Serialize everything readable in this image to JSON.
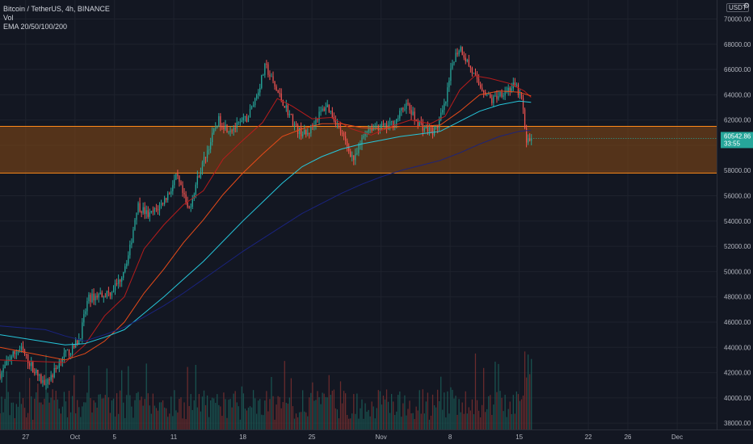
{
  "legend": {
    "symbol": "Bitcoin / TetherUS, 4h, BINANCE",
    "volume": "Vol",
    "ema": "EMA 20/50/100/200"
  },
  "currency": "USDT",
  "settings_icon": "scale-options-icon",
  "price_labels": {
    "last_price": "60542.86",
    "countdown": "33:55"
  },
  "colors": {
    "background": "#131722",
    "up": "#26a69a",
    "down": "#ef5350",
    "ema20": "#b71c1c",
    "ema50": "#e64a19",
    "ema100": "#26c6da",
    "ema200": "#1a237e",
    "zone_fill": "#8b4a14",
    "zone_border": "#ff8a1a",
    "price_label": "#26a69a"
  },
  "chart_data": {
    "type": "candlestick",
    "title": "Bitcoin / TetherUS, 4h, BINANCE",
    "xlabel": "",
    "ylabel": "",
    "y_ticks": [
      "38000.00",
      "40000.00",
      "42000.00",
      "44000.00",
      "46000.00",
      "48000.00",
      "50000.00",
      "52000.00",
      "54000.00",
      "56000.00",
      "58000.00",
      "60000.00",
      "62000.00",
      "64000.00",
      "66000.00",
      "68000.00",
      "70000.00"
    ],
    "ylim": [
      37500,
      71500
    ],
    "x_ticks": [
      {
        "label": "27",
        "day": -4
      },
      {
        "label": "Oct",
        "day": 1
      },
      {
        "label": "5",
        "day": 5
      },
      {
        "label": "11",
        "day": 11
      },
      {
        "label": "18",
        "day": 18
      },
      {
        "label": "25",
        "day": 25
      },
      {
        "label": "Nov",
        "day": 32
      },
      {
        "label": "8",
        "day": 39
      },
      {
        "label": "15",
        "day": 46
      },
      {
        "label": "22",
        "day": 53
      },
      {
        "label": "26",
        "day": 57
      },
      {
        "label": "Dec",
        "day": 62
      }
    ],
    "xlim_days": [
      -6.6,
      66
    ],
    "last_candle_day": 47.2,
    "support_zone": [
      57800,
      61500
    ],
    "key_points": [
      {
        "day": -6.5,
        "price": 41900
      },
      {
        "day": -5.5,
        "price": 43300
      },
      {
        "day": -4.5,
        "price": 43900
      },
      {
        "day": -3.3,
        "price": 42400
      },
      {
        "day": -2.3,
        "price": 41200
      },
      {
        "day": -1.3,
        "price": 41800
      },
      {
        "day": -0.3,
        "price": 43300
      },
      {
        "day": 0.7,
        "price": 43800
      },
      {
        "day": 1.5,
        "price": 44800
      },
      {
        "day": 2.3,
        "price": 47800
      },
      {
        "day": 3.5,
        "price": 48200
      },
      {
        "day": 4.5,
        "price": 48300
      },
      {
        "day": 5.5,
        "price": 49300
      },
      {
        "day": 6.5,
        "price": 51500
      },
      {
        "day": 7.3,
        "price": 55300
      },
      {
        "day": 8.5,
        "price": 54400
      },
      {
        "day": 9.5,
        "price": 55100
      },
      {
        "day": 10.5,
        "price": 56200
      },
      {
        "day": 11.3,
        "price": 57500
      },
      {
        "day": 12.5,
        "price": 54800
      },
      {
        "day": 13.5,
        "price": 57600
      },
      {
        "day": 14.5,
        "price": 59800
      },
      {
        "day": 15.5,
        "price": 62000
      },
      {
        "day": 16.5,
        "price": 61300
      },
      {
        "day": 17.5,
        "price": 61500
      },
      {
        "day": 18.5,
        "price": 62200
      },
      {
        "day": 19.5,
        "price": 64200
      },
      {
        "day": 20.3,
        "price": 66300
      },
      {
        "day": 21.3,
        "price": 64500
      },
      {
        "day": 22.5,
        "price": 62800
      },
      {
        "day": 23.5,
        "price": 61200
      },
      {
        "day": 24.5,
        "price": 60800
      },
      {
        "day": 25.5,
        "price": 62200
      },
      {
        "day": 26.5,
        "price": 63200
      },
      {
        "day": 27.5,
        "price": 61800
      },
      {
        "day": 28.5,
        "price": 60000
      },
      {
        "day": 29.3,
        "price": 58800
      },
      {
        "day": 30.5,
        "price": 61300
      },
      {
        "day": 31.5,
        "price": 61500
      },
      {
        "day": 32.5,
        "price": 61400
      },
      {
        "day": 33.5,
        "price": 61900
      },
      {
        "day": 34.5,
        "price": 63300
      },
      {
        "day": 35.5,
        "price": 62000
      },
      {
        "day": 36.5,
        "price": 61300
      },
      {
        "day": 37.5,
        "price": 61100
      },
      {
        "day": 38.5,
        "price": 63200
      },
      {
        "day": 39.3,
        "price": 66800
      },
      {
        "day": 40.0,
        "price": 67800
      },
      {
        "day": 41.0,
        "price": 66200
      },
      {
        "day": 41.8,
        "price": 64900
      },
      {
        "day": 42.5,
        "price": 64300
      },
      {
        "day": 43.2,
        "price": 63500
      },
      {
        "day": 44.0,
        "price": 64100
      },
      {
        "day": 45.0,
        "price": 64500
      },
      {
        "day": 45.6,
        "price": 64700
      },
      {
        "day": 46.3,
        "price": 63500
      },
      {
        "day": 46.7,
        "price": 60200
      },
      {
        "day": 47.2,
        "price": 60540
      }
    ],
    "series": [
      {
        "name": "EMA 20",
        "type": "line",
        "values": [
          {
            "day": -6.6,
            "price": 43000
          },
          {
            "day": 0,
            "price": 42800
          },
          {
            "day": 2,
            "price": 44200
          },
          {
            "day": 4,
            "price": 46500
          },
          {
            "day": 6,
            "price": 48000
          },
          {
            "day": 8,
            "price": 51800
          },
          {
            "day": 10,
            "price": 53700
          },
          {
            "day": 12,
            "price": 55300
          },
          {
            "day": 14,
            "price": 56400
          },
          {
            "day": 16,
            "price": 58900
          },
          {
            "day": 18,
            "price": 60400
          },
          {
            "day": 20,
            "price": 61800
          },
          {
            "day": 21.5,
            "price": 63700
          },
          {
            "day": 23,
            "price": 63100
          },
          {
            "day": 25,
            "price": 62100
          },
          {
            "day": 27,
            "price": 62200
          },
          {
            "day": 29,
            "price": 61300
          },
          {
            "day": 31,
            "price": 60800
          },
          {
            "day": 33,
            "price": 61500
          },
          {
            "day": 35,
            "price": 62000
          },
          {
            "day": 37,
            "price": 61700
          },
          {
            "day": 38.5,
            "price": 62300
          },
          {
            "day": 40,
            "price": 64400
          },
          {
            "day": 41.5,
            "price": 65500
          },
          {
            "day": 43,
            "price": 65300
          },
          {
            "day": 45,
            "price": 64900
          },
          {
            "day": 46.5,
            "price": 64300
          },
          {
            "day": 47.2,
            "price": 63800
          }
        ]
      },
      {
        "name": "EMA 50",
        "type": "line",
        "values": [
          {
            "day": -6.6,
            "price": 44000
          },
          {
            "day": 0,
            "price": 43000
          },
          {
            "day": 2,
            "price": 43500
          },
          {
            "day": 4,
            "price": 44500
          },
          {
            "day": 6,
            "price": 46000
          },
          {
            "day": 8,
            "price": 48300
          },
          {
            "day": 10,
            "price": 50200
          },
          {
            "day": 12,
            "price": 52300
          },
          {
            "day": 14,
            "price": 54100
          },
          {
            "day": 16,
            "price": 56100
          },
          {
            "day": 18,
            "price": 57800
          },
          {
            "day": 20,
            "price": 59300
          },
          {
            "day": 22,
            "price": 60700
          },
          {
            "day": 24,
            "price": 61300
          },
          {
            "day": 26,
            "price": 61700
          },
          {
            "day": 28,
            "price": 61700
          },
          {
            "day": 30,
            "price": 61400
          },
          {
            "day": 32,
            "price": 61300
          },
          {
            "day": 34,
            "price": 61500
          },
          {
            "day": 36,
            "price": 61500
          },
          {
            "day": 38,
            "price": 61600
          },
          {
            "day": 40,
            "price": 62700
          },
          {
            "day": 42,
            "price": 64000
          },
          {
            "day": 44,
            "price": 64300
          },
          {
            "day": 46,
            "price": 64200
          },
          {
            "day": 47.2,
            "price": 63900
          }
        ]
      },
      {
        "name": "EMA 100",
        "type": "line",
        "values": [
          {
            "day": -6.6,
            "price": 45000
          },
          {
            "day": 0,
            "price": 44200
          },
          {
            "day": 2,
            "price": 44300
          },
          {
            "day": 4,
            "price": 44800
          },
          {
            "day": 6,
            "price": 45400
          },
          {
            "day": 8,
            "price": 46700
          },
          {
            "day": 10,
            "price": 48000
          },
          {
            "day": 12,
            "price": 49400
          },
          {
            "day": 14,
            "price": 50800
          },
          {
            "day": 16,
            "price": 52400
          },
          {
            "day": 18,
            "price": 54000
          },
          {
            "day": 20,
            "price": 55500
          },
          {
            "day": 22,
            "price": 57000
          },
          {
            "day": 24,
            "price": 58300
          },
          {
            "day": 26,
            "price": 59100
          },
          {
            "day": 28,
            "price": 59700
          },
          {
            "day": 30,
            "price": 60100
          },
          {
            "day": 32,
            "price": 60400
          },
          {
            "day": 34,
            "price": 60700
          },
          {
            "day": 36,
            "price": 60900
          },
          {
            "day": 38,
            "price": 61100
          },
          {
            "day": 40,
            "price": 61900
          },
          {
            "day": 42,
            "price": 62700
          },
          {
            "day": 44,
            "price": 63200
          },
          {
            "day": 46,
            "price": 63500
          },
          {
            "day": 47.2,
            "price": 63400
          }
        ]
      },
      {
        "name": "EMA 200",
        "type": "line",
        "values": [
          {
            "day": -6.6,
            "price": 45700
          },
          {
            "day": -2,
            "price": 45400
          },
          {
            "day": 0,
            "price": 44900
          },
          {
            "day": 2,
            "price": 44500
          },
          {
            "day": 4,
            "price": 45000
          },
          {
            "day": 6,
            "price": 45600
          },
          {
            "day": 8,
            "price": 46400
          },
          {
            "day": 10,
            "price": 47300
          },
          {
            "day": 12,
            "price": 48300
          },
          {
            "day": 14,
            "price": 49400
          },
          {
            "day": 16,
            "price": 50500
          },
          {
            "day": 18,
            "price": 51600
          },
          {
            "day": 20,
            "price": 52600
          },
          {
            "day": 22,
            "price": 53600
          },
          {
            "day": 24,
            "price": 54600
          },
          {
            "day": 26,
            "price": 55400
          },
          {
            "day": 28,
            "price": 56200
          },
          {
            "day": 30,
            "price": 56900
          },
          {
            "day": 32,
            "price": 57500
          },
          {
            "day": 34,
            "price": 58000
          },
          {
            "day": 36,
            "price": 58400
          },
          {
            "day": 38,
            "price": 58800
          },
          {
            "day": 40,
            "price": 59400
          },
          {
            "day": 42,
            "price": 60100
          },
          {
            "day": 44,
            "price": 60700
          },
          {
            "day": 46,
            "price": 61100
          },
          {
            "day": 47.2,
            "price": 61200
          }
        ]
      }
    ],
    "grid": true,
    "legend_position": "top-left"
  }
}
